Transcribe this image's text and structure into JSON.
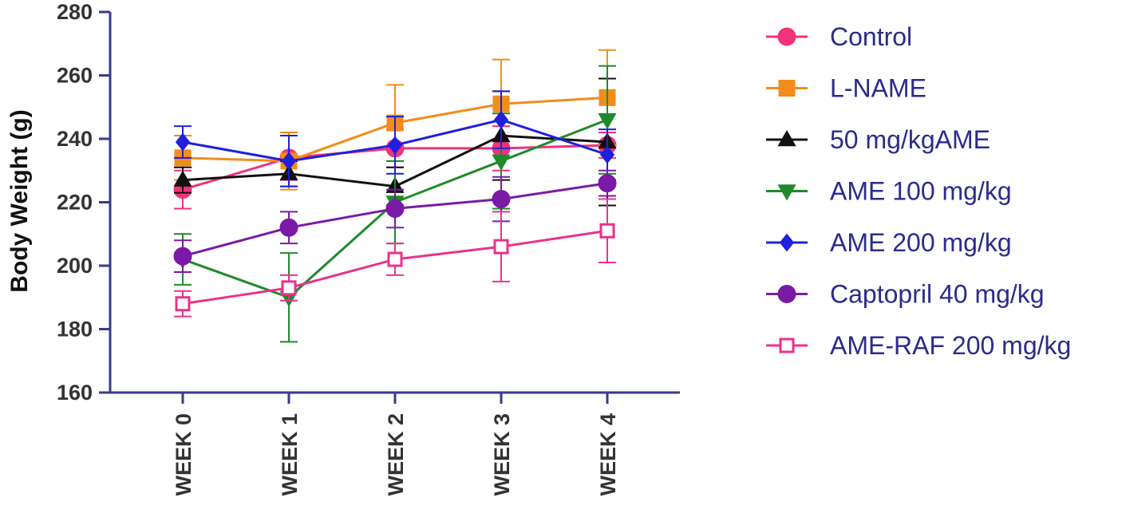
{
  "chart_data": {
    "type": "line",
    "ylabel": "Body Weight (g)",
    "xlabel": "",
    "categories": [
      "WEEK 0",
      "WEEK 1",
      "WEEK 2",
      "WEEK 3",
      "WEEK 4"
    ],
    "ylim": [
      160,
      280
    ],
    "yticks": [
      "160",
      "180",
      "200",
      "220",
      "240",
      "260",
      "280"
    ],
    "grid": false,
    "legend_position": "right",
    "axis_color": "#3a3a8c",
    "series": [
      {
        "name": "Control",
        "color": "#f0337a",
        "marker": "circle",
        "filled": true,
        "values": [
          224,
          234,
          237,
          237,
          238
        ],
        "errors": [
          6,
          7,
          6,
          7,
          4
        ]
      },
      {
        "name": "L-NAME",
        "color": "#f28c1a",
        "marker": "square",
        "filled": true,
        "values": [
          234,
          233,
          245,
          251,
          253
        ],
        "errors": [
          7,
          9,
          12,
          14,
          15
        ]
      },
      {
        "name": "50 mg/kgAME",
        "color": "#111111",
        "marker": "triangle-up",
        "filled": true,
        "values": [
          227,
          229,
          225,
          241,
          239
        ],
        "errors": [
          4,
          4,
          6,
          14,
          20
        ]
      },
      {
        "name": "AME 100 mg/kg",
        "color": "#1f8a2b",
        "marker": "triangle-down",
        "filled": true,
        "values": [
          202,
          190,
          220,
          233,
          246
        ],
        "errors": [
          8,
          14,
          13,
          15,
          17
        ]
      },
      {
        "name": "AME 200 mg/kg",
        "color": "#1f1fdd",
        "marker": "diamond",
        "filled": true,
        "values": [
          239,
          233,
          238,
          246,
          235
        ],
        "errors": [
          5,
          8,
          9,
          9,
          8
        ]
      },
      {
        "name": "Captopril 40 mg/kg",
        "color": "#7a1aa6",
        "marker": "circle",
        "filled": true,
        "values": [
          203,
          212,
          218,
          221,
          226
        ],
        "errors": [
          5,
          5,
          6,
          7,
          4
        ]
      },
      {
        "name": "AME-RAF 200 mg/kg",
        "color": "#e8338c",
        "marker": "square",
        "filled": false,
        "values": [
          188,
          193,
          202,
          206,
          211
        ],
        "errors": [
          4,
          4,
          5,
          11,
          10
        ]
      }
    ]
  }
}
